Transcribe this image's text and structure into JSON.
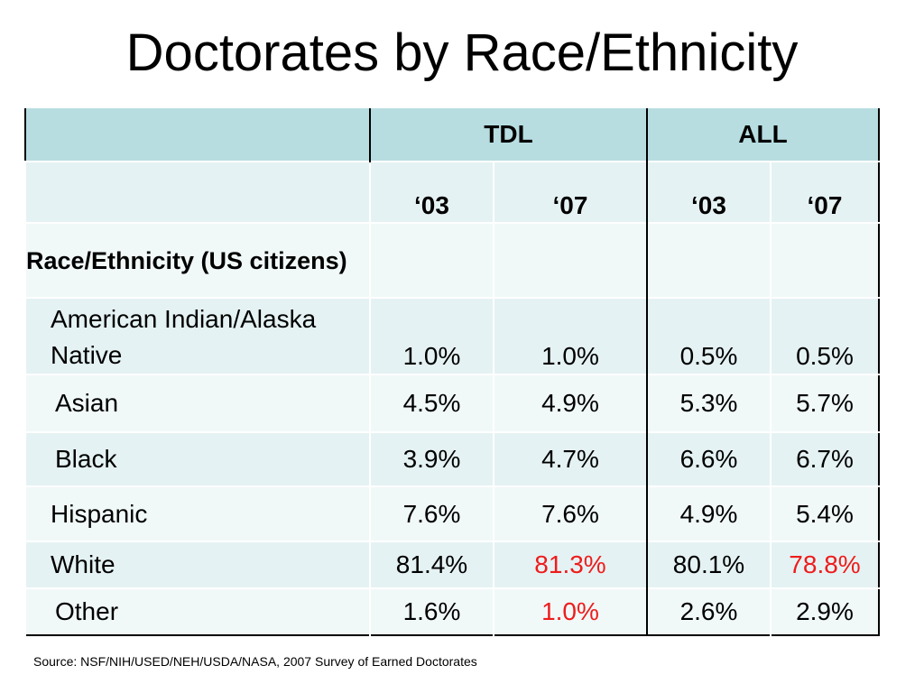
{
  "title": "Doctorates by Race/Ethnicity",
  "table": {
    "group_headers": [
      "TDL",
      "ALL"
    ],
    "year_headers": [
      "‘03",
      "‘07",
      "‘03",
      "‘07"
    ],
    "section_label": "Race/Ethnicity (US citizens)",
    "rows": [
      {
        "name": "American Indian/Alaska Native",
        "values": [
          "1.0%",
          "1.0%",
          "0.5%",
          "0.5%"
        ]
      },
      {
        "name": "Asian",
        "values": [
          "4.5%",
          "4.9%",
          "5.3%",
          "5.7%"
        ]
      },
      {
        "name": "Black",
        "values": [
          "3.9%",
          "4.7%",
          "6.6%",
          "6.7%"
        ]
      },
      {
        "name": "Hispanic",
        "values": [
          "7.6%",
          "7.6%",
          "4.9%",
          "5.4%"
        ]
      },
      {
        "name": "White",
        "values": [
          "81.4%",
          "81.3%",
          "80.1%",
          "78.8%"
        ]
      },
      {
        "name": "Other",
        "values": [
          "1.6%",
          "1.0%",
          "2.6%",
          "2.9%"
        ]
      }
    ],
    "highlight_color": "#ee1c1c",
    "header_color": "#b7dde1",
    "band_color": "#e5f2f3"
  },
  "source": "Source: NSF/NIH/USED/NEH/USDA/NASA, 2007 Survey of Earned Doctorates"
}
